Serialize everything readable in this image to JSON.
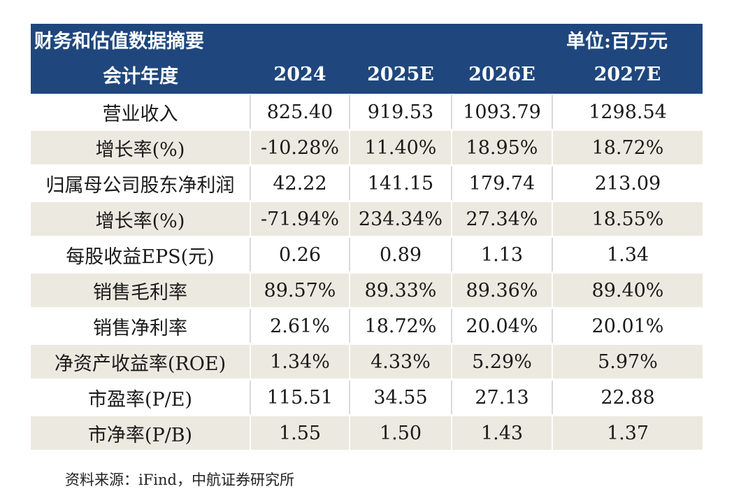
{
  "table": {
    "title": "财务和估值数据摘要",
    "unit": "单位:百万元",
    "header": [
      "会计年度",
      "2024",
      "2025E",
      "2026E",
      "2027E"
    ],
    "rows": [
      [
        "营业收入",
        "825.40",
        "919.53",
        "1093.79",
        "1298.54"
      ],
      [
        "增长率(%)",
        "-10.28%",
        "11.40%",
        "18.95%",
        "18.72%"
      ],
      [
        "归属母公司股东净利润",
        "42.22",
        "141.15",
        "179.74",
        "213.09"
      ],
      [
        "增长率(%)",
        "-71.94%",
        "234.34%",
        "27.34%",
        "18.55%"
      ],
      [
        "每股收益EPS(元)",
        "0.26",
        "0.89",
        "1.13",
        "1.34"
      ],
      [
        "销售毛利率",
        "89.57%",
        "89.33%",
        "89.36%",
        "89.40%"
      ],
      [
        "销售净利率",
        "2.61%",
        "18.72%",
        "20.04%",
        "20.01%"
      ],
      [
        "净资产收益率(ROE)",
        "1.34%",
        "4.33%",
        "5.29%",
        "5.97%"
      ],
      [
        "市盈率(P/E)",
        "115.51",
        "34.55",
        "27.13",
        "22.88"
      ],
      [
        "市净率(P/B)",
        "1.55",
        "1.50",
        "1.43",
        "1.37"
      ]
    ]
  },
  "source": "资料来源：iFind，中航证券研究所",
  "colors": {
    "header_bg": "#1f477d",
    "header_text": "#ffffff",
    "shade_row": "#ece9e0"
  }
}
